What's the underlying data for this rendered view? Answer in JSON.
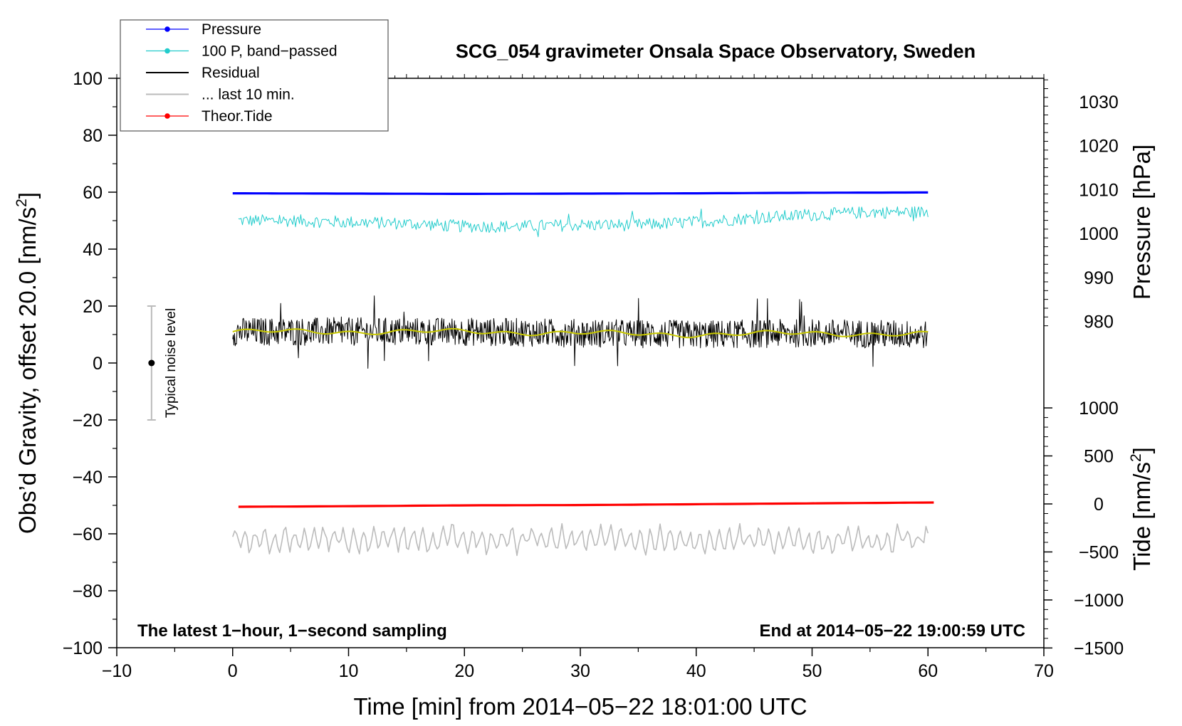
{
  "chart_data": {
    "type": "line",
    "title": "SCG_054 gravimeter Onsala Space Observatory, Sweden",
    "xlabel": "Time [min] from 2014−05−22 18:01:00 UTC",
    "ylabel_main": "Obs’d Gravity, offset 20.0 [nm/s",
    "ylabel_main_sup": "2",
    "ylabel_main_end": "]",
    "ylabel_pressure": "Pressure [hPa]",
    "ylabel_tide": "Tide [nm/s",
    "ylabel_tide_sup": "2",
    "ylabel_tide_end": "]",
    "xlim": [
      -10,
      70
    ],
    "ylim": [
      -100,
      100
    ],
    "x_ticks": [
      "−10",
      "0",
      "10",
      "20",
      "30",
      "40",
      "50",
      "60",
      "70"
    ],
    "y_ticks": [
      "100",
      "80",
      "60",
      "40",
      "20",
      "0",
      "−20",
      "−40",
      "−60",
      "−80",
      "−100"
    ],
    "pressure_ticks": [
      "1030",
      "1020",
      "1010",
      "1000",
      "990",
      "980"
    ],
    "pressure_tick_values": [
      1030,
      1020,
      1010,
      1000,
      990,
      980
    ],
    "tide_ticks": [
      "1000",
      "500",
      "0",
      "−500",
      "−1000",
      "−1500"
    ],
    "tide_tick_values": [
      1000,
      500,
      0,
      -500,
      -1000,
      -1500
    ],
    "note_left": "The latest 1−hour, 1−second sampling",
    "note_right": "End at 2014−05−22 19:00:59 UTC",
    "noise_label": "Typical noise level",
    "noise_bar": {
      "x": -7,
      "center": 0,
      "low": -20,
      "high": 20
    },
    "legend": [
      {
        "label": "Pressure",
        "color": "#0000ff",
        "marker": true
      },
      {
        "label": "100 P, band−passed",
        "color": "#22cccc",
        "marker": true
      },
      {
        "label": "Residual",
        "color": "#000000",
        "marker": false
      },
      {
        "label": "... last 10 min.",
        "color": "#bbbbbb",
        "marker": false
      },
      {
        "label": "Theor.Tide",
        "color": "#ff0000",
        "marker": true
      }
    ],
    "series": [
      {
        "name": "Pressure",
        "color": "#0000ff",
        "x": [
          0,
          10,
          20,
          30,
          40,
          50,
          60
        ],
        "y": [
          59.6,
          59.5,
          59.4,
          59.5,
          59.6,
          59.8,
          59.9
        ]
      },
      {
        "name": "100 P, band−passed",
        "color": "#22cccc",
        "x": [
          0.5,
          5,
          10,
          15,
          20,
          25,
          30,
          35,
          40,
          45,
          50,
          55,
          60
        ],
        "y": [
          50,
          50,
          49.5,
          49,
          48,
          48,
          48.5,
          48.5,
          49.5,
          51,
          52,
          53,
          53
        ],
        "noise": 2.2
      },
      {
        "name": "Residual",
        "color": "#000000",
        "x": [
          0,
          10,
          20,
          30,
          40,
          50,
          60
        ],
        "y": [
          11,
          11,
          11,
          10.5,
          10,
          10.5,
          10
        ],
        "noise": 5
      },
      {
        "name": "Residual smoothed",
        "color": "#c8c800",
        "x": [
          0,
          10,
          20,
          30,
          40,
          50,
          60
        ],
        "y": [
          11,
          11,
          11,
          10.5,
          10,
          10.5,
          10
        ]
      },
      {
        "name": "... last 10 min.",
        "color": "#bbbbbb",
        "x": [
          0,
          60
        ],
        "y": [
          -62,
          -62
        ],
        "noise": 4
      },
      {
        "name": "Theor.Tide",
        "color": "#ff0000",
        "x": [
          0.5,
          10,
          20,
          30,
          40,
          50,
          60.5
        ],
        "y": [
          -50.5,
          -50.3,
          -50.0,
          -49.9,
          -49.6,
          -49.3,
          -49.0
        ]
      }
    ],
    "legend_placement": "top-left",
    "grid": false
  }
}
